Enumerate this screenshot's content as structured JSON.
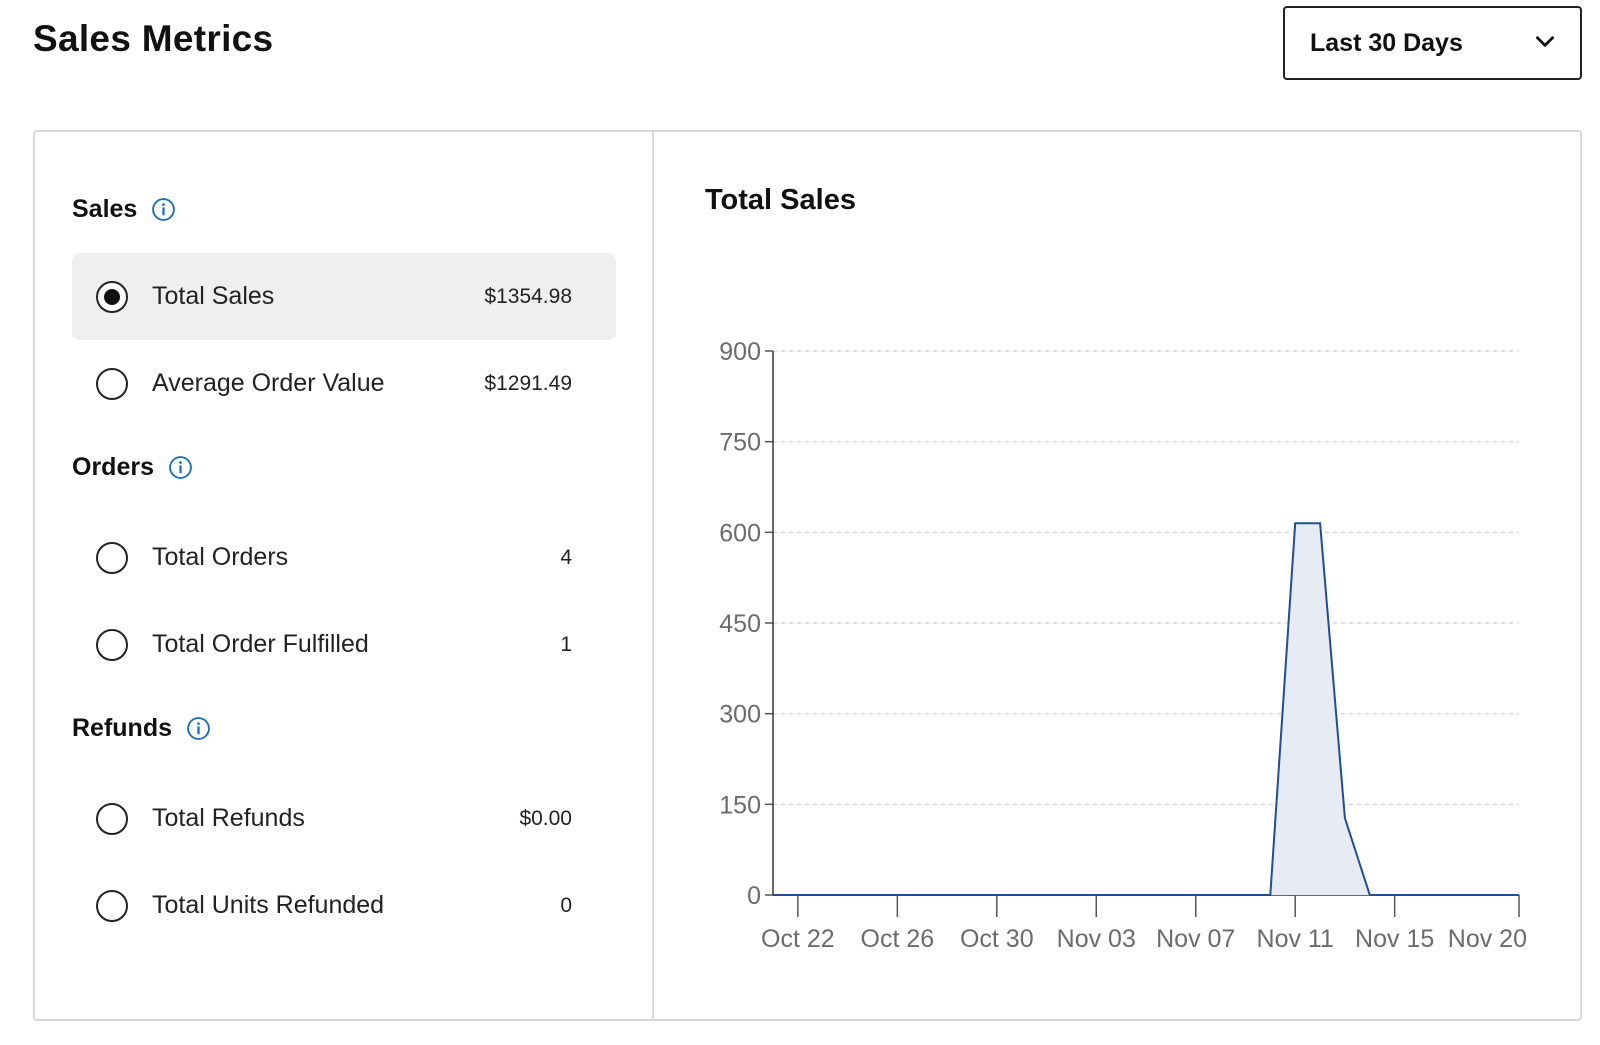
{
  "page": {
    "title": "Sales Metrics"
  },
  "date_range": {
    "selected": "Last 30 Days",
    "icon": "chevron-down-icon"
  },
  "groups": [
    {
      "heading": "Sales",
      "icon": "info-icon",
      "items": [
        {
          "label": "Total Sales",
          "value": "$1354.98",
          "selected": true
        },
        {
          "label": "Average Order Value",
          "value": "$1291.49",
          "selected": false
        }
      ]
    },
    {
      "heading": "Orders",
      "icon": "info-icon",
      "items": [
        {
          "label": "Total Orders",
          "value": "4",
          "selected": false
        },
        {
          "label": "Total Order Fulfilled",
          "value": "1",
          "selected": false
        }
      ]
    },
    {
      "heading": "Refunds",
      "icon": "info-icon",
      "items": [
        {
          "label": "Total Refunds",
          "value": "$0.00",
          "selected": false
        },
        {
          "label": "Total Units Refunded",
          "value": "0",
          "selected": false
        }
      ]
    }
  ],
  "colors": {
    "accent": "#1f6fb5",
    "series_line": "#1f4e96",
    "series_fill": "#e7ebf4",
    "grid": "#cfcfcf"
  },
  "chart_data": {
    "type": "area",
    "title": "Total Sales",
    "xlabel": "",
    "ylabel": "",
    "ylim": [
      0,
      900
    ],
    "yticks": [
      0,
      150,
      300,
      450,
      600,
      750,
      900
    ],
    "xticks": [
      "Oct 22",
      "Oct 26",
      "Oct 30",
      "Nov 03",
      "Nov 07",
      "Nov 11",
      "Nov 15",
      "Nov 20"
    ],
    "grid": true,
    "series": [
      {
        "x": [
          "Oct 21",
          "Nov 10",
          "Nov 11",
          "Nov 12",
          "Nov 13",
          "Nov 14",
          "Nov 20"
        ],
        "values": [
          0,
          0,
          615,
          615,
          127,
          0,
          0
        ]
      }
    ]
  }
}
